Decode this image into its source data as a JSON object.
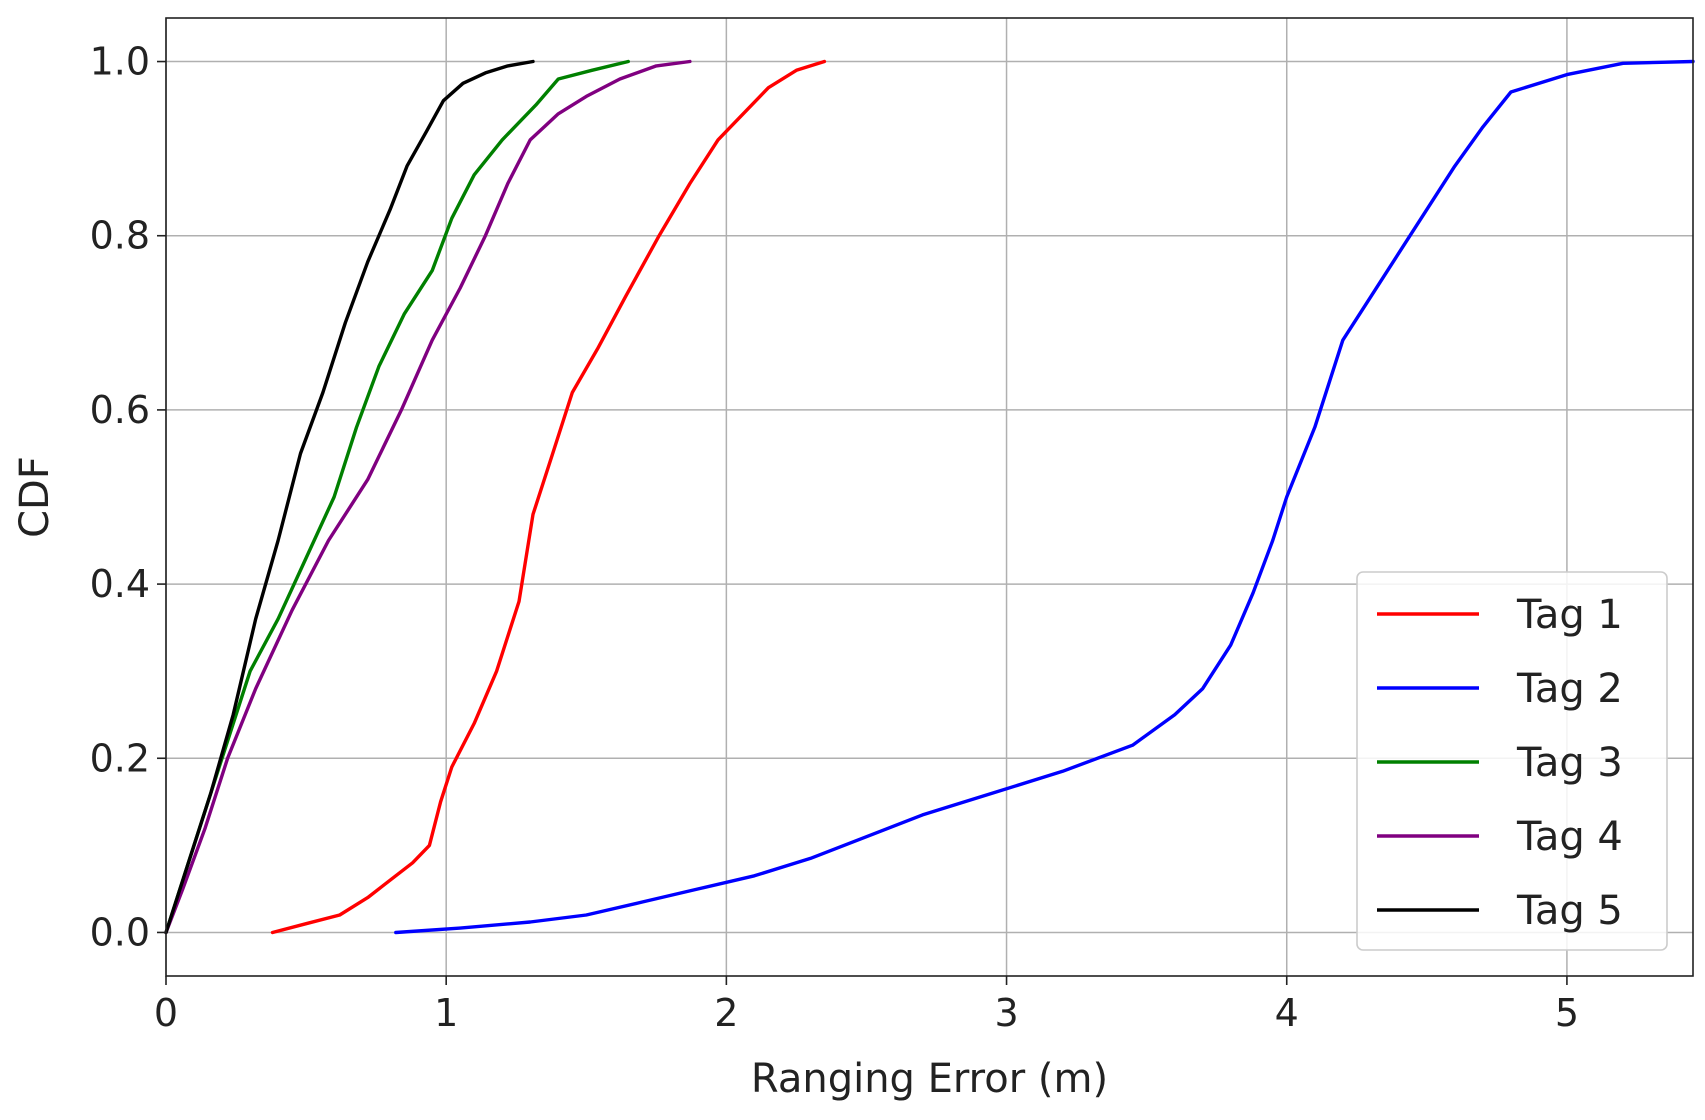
{
  "chart_data": {
    "type": "line",
    "title": "",
    "xlabel": "Ranging Error (m)",
    "ylabel": "CDF",
    "xlim": [
      0,
      5.45
    ],
    "ylim": [
      -0.05,
      1.05
    ],
    "xticks": [
      0,
      1,
      2,
      3,
      4,
      5
    ],
    "xtick_labels": [
      "0",
      "1",
      "2",
      "3",
      "4",
      "5"
    ],
    "yticks": [
      0.0,
      0.2,
      0.4,
      0.6,
      0.8,
      1.0
    ],
    "ytick_labels": [
      "0.0",
      "0.2",
      "0.4",
      "0.6",
      "0.8",
      "1.0"
    ],
    "grid": true,
    "legend_position": "lower right",
    "series": [
      {
        "name": "Tag 1",
        "color": "#ff0000",
        "points": [
          [
            0.38,
            0.0
          ],
          [
            0.5,
            0.01
          ],
          [
            0.62,
            0.02
          ],
          [
            0.72,
            0.04
          ],
          [
            0.8,
            0.06
          ],
          [
            0.88,
            0.08
          ],
          [
            0.94,
            0.1
          ],
          [
            0.98,
            0.15
          ],
          [
            1.02,
            0.19
          ],
          [
            1.1,
            0.24
          ],
          [
            1.18,
            0.3
          ],
          [
            1.26,
            0.38
          ],
          [
            1.31,
            0.48
          ],
          [
            1.38,
            0.55
          ],
          [
            1.45,
            0.62
          ],
          [
            1.54,
            0.67
          ],
          [
            1.64,
            0.73
          ],
          [
            1.76,
            0.8
          ],
          [
            1.87,
            0.86
          ],
          [
            1.97,
            0.91
          ],
          [
            2.06,
            0.94
          ],
          [
            2.15,
            0.97
          ],
          [
            2.25,
            0.99
          ],
          [
            2.35,
            1.0
          ]
        ]
      },
      {
        "name": "Tag 2",
        "color": "#0000ff",
        "points": [
          [
            0.82,
            0.0
          ],
          [
            1.05,
            0.005
          ],
          [
            1.3,
            0.012
          ],
          [
            1.5,
            0.02
          ],
          [
            1.7,
            0.035
          ],
          [
            1.9,
            0.05
          ],
          [
            2.1,
            0.065
          ],
          [
            2.3,
            0.085
          ],
          [
            2.5,
            0.11
          ],
          [
            2.7,
            0.135
          ],
          [
            2.95,
            0.16
          ],
          [
            3.2,
            0.185
          ],
          [
            3.45,
            0.215
          ],
          [
            3.6,
            0.25
          ],
          [
            3.7,
            0.28
          ],
          [
            3.8,
            0.33
          ],
          [
            3.88,
            0.39
          ],
          [
            3.95,
            0.45
          ],
          [
            4.0,
            0.5
          ],
          [
            4.1,
            0.58
          ],
          [
            4.15,
            0.63
          ],
          [
            4.2,
            0.68
          ],
          [
            4.3,
            0.73
          ],
          [
            4.4,
            0.78
          ],
          [
            4.5,
            0.83
          ],
          [
            4.6,
            0.88
          ],
          [
            4.7,
            0.925
          ],
          [
            4.8,
            0.965
          ],
          [
            5.0,
            0.985
          ],
          [
            5.2,
            0.998
          ],
          [
            5.45,
            1.0
          ]
        ]
      },
      {
        "name": "Tag 3",
        "color": "#008000",
        "points": [
          [
            0.0,
            0.0
          ],
          [
            0.05,
            0.05
          ],
          [
            0.12,
            0.12
          ],
          [
            0.2,
            0.2
          ],
          [
            0.3,
            0.3
          ],
          [
            0.4,
            0.36
          ],
          [
            0.5,
            0.43
          ],
          [
            0.6,
            0.5
          ],
          [
            0.68,
            0.58
          ],
          [
            0.76,
            0.65
          ],
          [
            0.85,
            0.71
          ],
          [
            0.95,
            0.76
          ],
          [
            1.02,
            0.82
          ],
          [
            1.1,
            0.87
          ],
          [
            1.2,
            0.91
          ],
          [
            1.32,
            0.95
          ],
          [
            1.4,
            0.98
          ],
          [
            1.52,
            0.99
          ],
          [
            1.65,
            1.0
          ]
        ]
      },
      {
        "name": "Tag 4",
        "color": "#800080",
        "points": [
          [
            0.0,
            0.0
          ],
          [
            0.06,
            0.05
          ],
          [
            0.14,
            0.12
          ],
          [
            0.22,
            0.2
          ],
          [
            0.32,
            0.28
          ],
          [
            0.45,
            0.37
          ],
          [
            0.58,
            0.45
          ],
          [
            0.72,
            0.52
          ],
          [
            0.84,
            0.6
          ],
          [
            0.95,
            0.68
          ],
          [
            1.05,
            0.74
          ],
          [
            1.14,
            0.8
          ],
          [
            1.22,
            0.86
          ],
          [
            1.3,
            0.91
          ],
          [
            1.4,
            0.94
          ],
          [
            1.5,
            0.96
          ],
          [
            1.62,
            0.98
          ],
          [
            1.75,
            0.995
          ],
          [
            1.87,
            1.0
          ]
        ]
      },
      {
        "name": "Tag 5",
        "color": "#000000",
        "points": [
          [
            0.0,
            0.0
          ],
          [
            0.08,
            0.08
          ],
          [
            0.16,
            0.16
          ],
          [
            0.24,
            0.25
          ],
          [
            0.32,
            0.36
          ],
          [
            0.4,
            0.45
          ],
          [
            0.48,
            0.55
          ],
          [
            0.56,
            0.62
          ],
          [
            0.64,
            0.7
          ],
          [
            0.72,
            0.77
          ],
          [
            0.8,
            0.83
          ],
          [
            0.86,
            0.88
          ],
          [
            0.93,
            0.92
          ],
          [
            0.99,
            0.955
          ],
          [
            1.06,
            0.975
          ],
          [
            1.14,
            0.987
          ],
          [
            1.22,
            0.995
          ],
          [
            1.31,
            1.0
          ]
        ]
      }
    ]
  }
}
